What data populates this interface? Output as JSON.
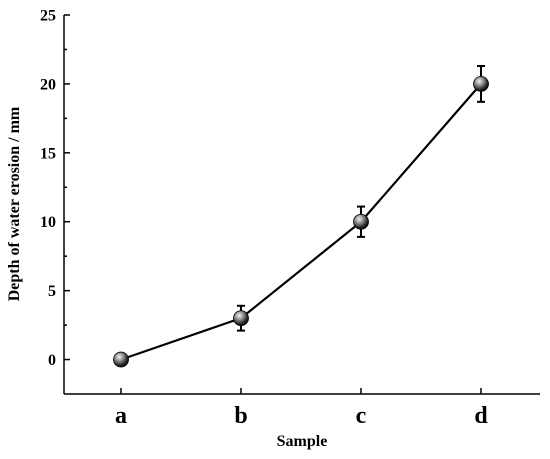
{
  "chart_data": {
    "type": "line",
    "categories": [
      "a",
      "b",
      "c",
      "d"
    ],
    "series": [
      {
        "values": [
          0,
          3,
          10,
          20
        ],
        "error": [
          0,
          0.9,
          1.1,
          1.3
        ]
      }
    ],
    "xlabel": "Sample",
    "ylabel": "Depth of water erosion / mm",
    "ylim": [
      -2.5,
      25
    ],
    "yticks": [
      0,
      5,
      10,
      15,
      20,
      25
    ],
    "ytick_labels": [
      "0",
      "5",
      "10",
      "15",
      "20",
      "25"
    ],
    "grid": false,
    "legend": "none",
    "marker": "sphere",
    "colors": {
      "line": "#000000",
      "marker_light": "#d8d8d8",
      "marker_dark": "#000000"
    }
  }
}
